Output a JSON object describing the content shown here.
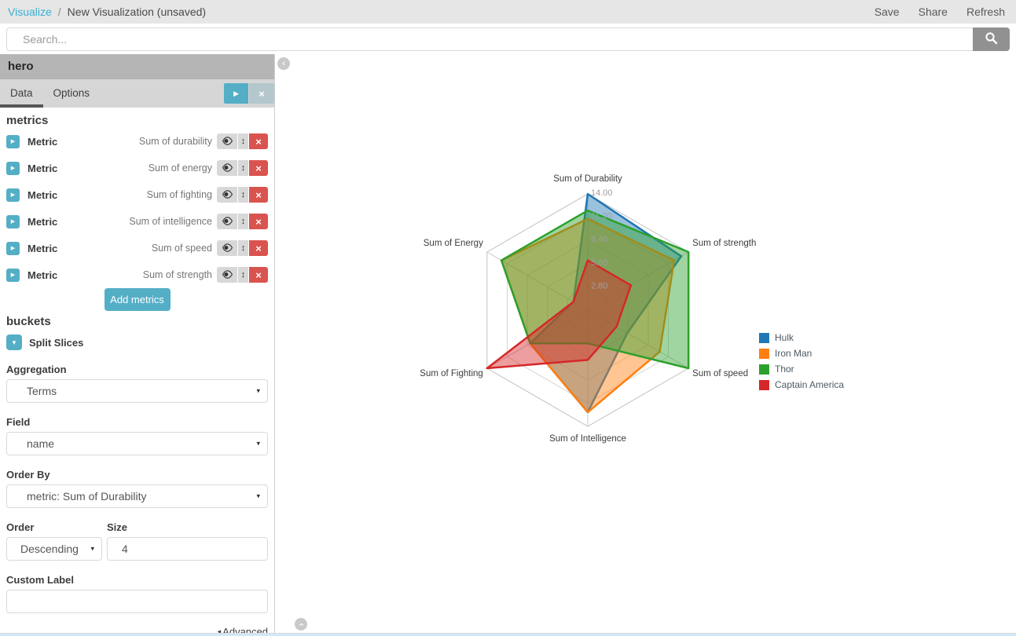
{
  "topbar": {
    "breadcrumb": {
      "section": "Visualize",
      "separator": "/",
      "title": "New Visualization (unsaved)"
    },
    "actions": [
      {
        "label": "Save"
      },
      {
        "label": "Share"
      },
      {
        "label": "Refresh"
      }
    ]
  },
  "search": {
    "placeholder": "Search..."
  },
  "sidebar": {
    "title": "hero",
    "tabs": [
      {
        "label": "Data",
        "active": true
      },
      {
        "label": "Options",
        "active": false
      }
    ],
    "metrics_section": {
      "header": "metrics",
      "rows": [
        {
          "label": "Metric",
          "value": "Sum of durability"
        },
        {
          "label": "Metric",
          "value": "Sum of energy"
        },
        {
          "label": "Metric",
          "value": "Sum of fighting"
        },
        {
          "label": "Metric",
          "value": "Sum of intelligence"
        },
        {
          "label": "Metric",
          "value": "Sum of speed"
        },
        {
          "label": "Metric",
          "value": "Sum of strength"
        }
      ],
      "add_button": "Add metrics"
    },
    "buckets_section": {
      "header": "buckets",
      "split_slices_label": "Split Slices",
      "aggregation": {
        "label": "Aggregation",
        "value": "Terms"
      },
      "field": {
        "label": "Field",
        "value": "name"
      },
      "order_by": {
        "label": "Order By",
        "value": "metric: Sum of Durability"
      },
      "order": {
        "label": "Order",
        "value": "Descending"
      },
      "size": {
        "label": "Size",
        "value": "4"
      },
      "custom_label": {
        "label": "Custom Label",
        "value": ""
      },
      "advanced_label": "Advanced"
    }
  },
  "icons": {
    "play": "▶",
    "expand": "▶",
    "collapse": "▼",
    "updown": "↕",
    "remove": "×",
    "caret": "▾",
    "advanced_arrow": "◂",
    "chevron_left": "‹"
  },
  "chart_data": {
    "type": "radar",
    "axes": [
      "Sum of Durability",
      "Sum of strength",
      "Sum of speed",
      "Sum of Intelligence",
      "Sum of Fighting",
      "Sum of Energy"
    ],
    "max": 14,
    "ticks": [
      2.8,
      5.6,
      8.4,
      11.2,
      14
    ],
    "tick_labels": [
      "2.80",
      "5.60",
      "8.40",
      "11.20",
      "14.00"
    ],
    "grid": "hexagonal-web",
    "legend_position": "right",
    "series": [
      {
        "name": "Hulk",
        "color": "#1f77b4",
        "values": [
          14,
          13,
          5.5,
          12.3,
          8,
          2
        ]
      },
      {
        "name": "Iron Man",
        "color": "#ff7f0e",
        "values": [
          11,
          12,
          10,
          12.3,
          8,
          12
        ]
      },
      {
        "name": "Thor",
        "color": "#2ca02c",
        "values": [
          12,
          14,
          14,
          4,
          8,
          12
        ]
      },
      {
        "name": "Captain America",
        "color": "#d62728",
        "values": [
          6,
          6,
          4,
          6,
          14,
          2
        ]
      }
    ]
  }
}
